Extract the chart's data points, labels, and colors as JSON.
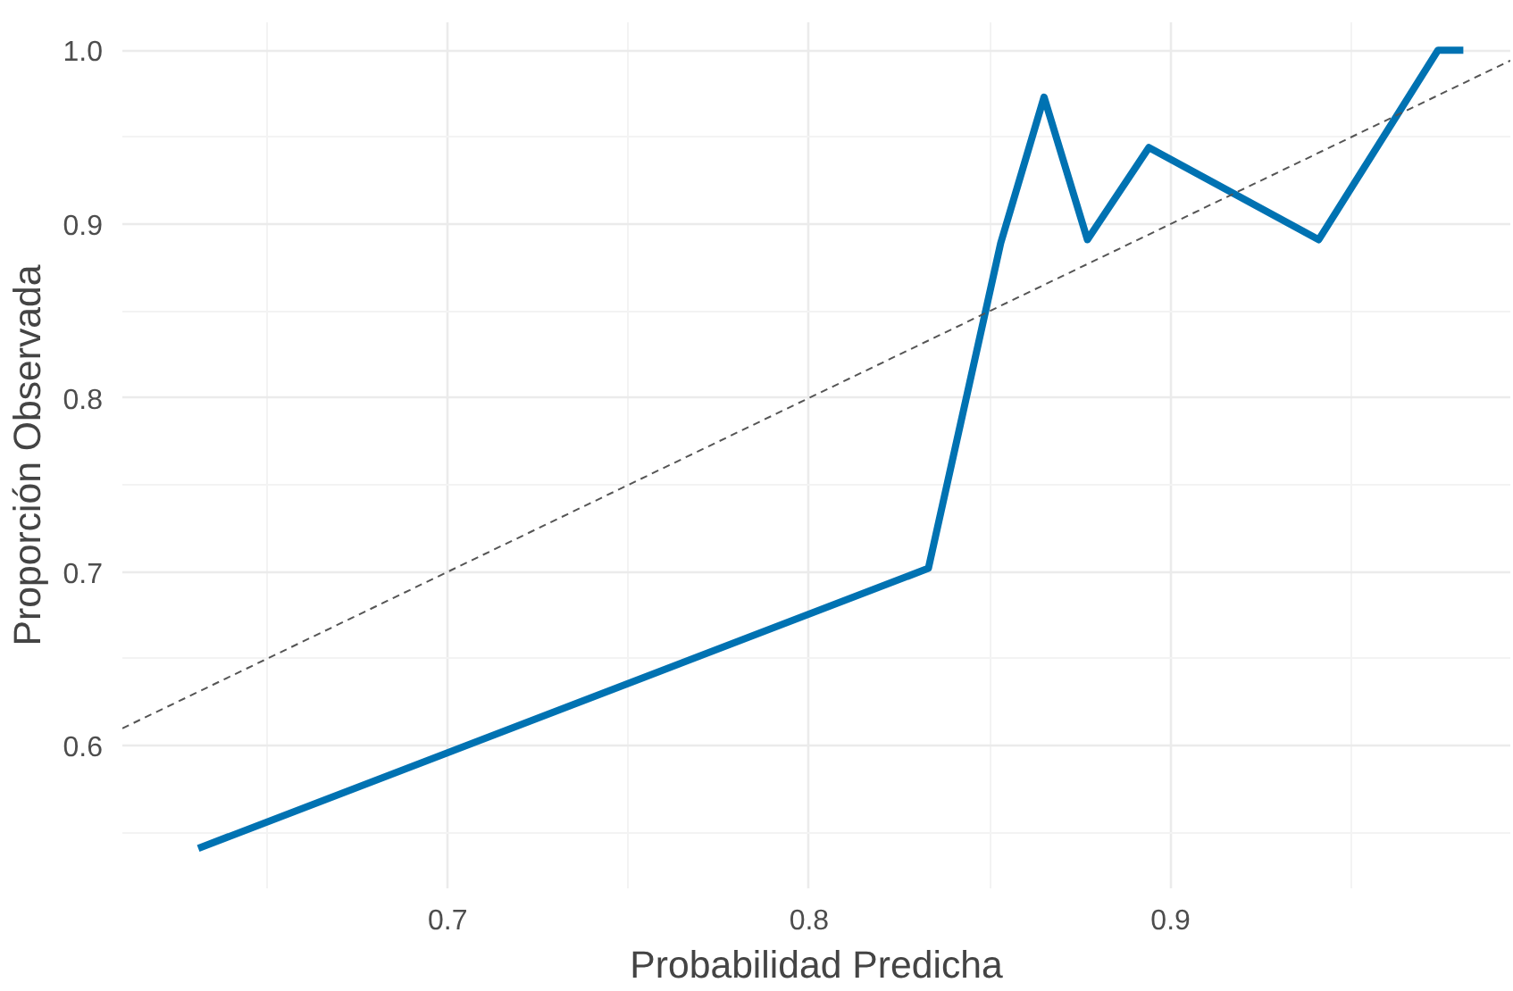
{
  "chart_data": {
    "type": "line",
    "xlabel": "Probabilidad Predicha",
    "ylabel": "Proporción Observada",
    "xlim": [
      0.61,
      0.994
    ],
    "ylim": [
      0.518,
      1.016
    ],
    "xticks": [
      0.7,
      0.8,
      0.9
    ],
    "yticks": [
      0.6,
      0.7,
      0.8,
      0.9,
      {
        "value": 1.0,
        "label": "1.0"
      }
    ],
    "grid": true,
    "marker": "none",
    "series": [
      {
        "color": "#0072b2",
        "x": [
          0.631,
          0.833,
          0.853,
          0.865,
          0.877,
          0.894,
          0.941,
          0.974,
          0.981
        ],
        "values": [
          0.541,
          0.702,
          0.889,
          0.973,
          0.891,
          0.944,
          0.891,
          1.0,
          1.0
        ],
        "line_style": "solid"
      },
      {
        "color": "#555555",
        "x": [
          0.61,
          0.994
        ],
        "values": [
          0.61,
          0.994
        ],
        "line_style": "dashed"
      }
    ]
  }
}
